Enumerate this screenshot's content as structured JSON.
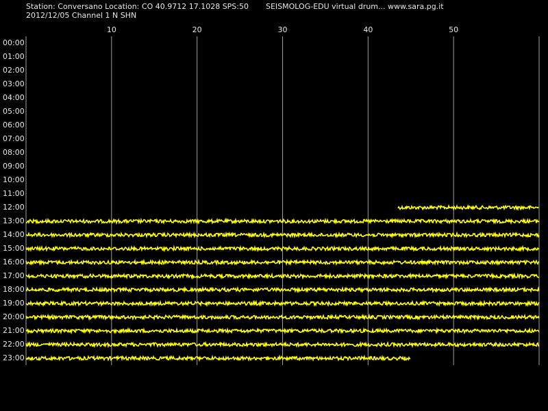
{
  "header": {
    "station_line": "Station: Conversano Location: CO 40.9712 17.1028 SPS:50",
    "title": "SEISMOLOG-EDU virtual drum... www.sara.pg.it",
    "date_line": "2012/12/05  Channel 1 N SHN"
  },
  "chart_data": {
    "type": "drum",
    "xlim": [
      0,
      60
    ],
    "xticks": [
      10,
      20,
      30,
      40,
      50
    ],
    "categories": [
      "00:00",
      "01:00",
      "02:00",
      "03:00",
      "04:00",
      "05:00",
      "06:00",
      "07:00",
      "08:00",
      "09:00",
      "10:00",
      "11:00",
      "12:00",
      "13:00",
      "14:00",
      "15:00",
      "16:00",
      "17:00",
      "18:00",
      "19:00",
      "20:00",
      "21:00",
      "22:00",
      "23:00"
    ],
    "trace_start": [
      null,
      null,
      null,
      null,
      null,
      null,
      null,
      null,
      null,
      null,
      null,
      null,
      43.5,
      0,
      0,
      0,
      0,
      0,
      0,
      0,
      0,
      0,
      0,
      0
    ],
    "trace_end": [
      null,
      null,
      null,
      null,
      null,
      null,
      null,
      null,
      null,
      null,
      null,
      null,
      60,
      60,
      60,
      60,
      60,
      60,
      60,
      60,
      60,
      60,
      60,
      45
    ],
    "color": "#ffff00",
    "grid_color": "#a0a0a0",
    "grid": true
  }
}
